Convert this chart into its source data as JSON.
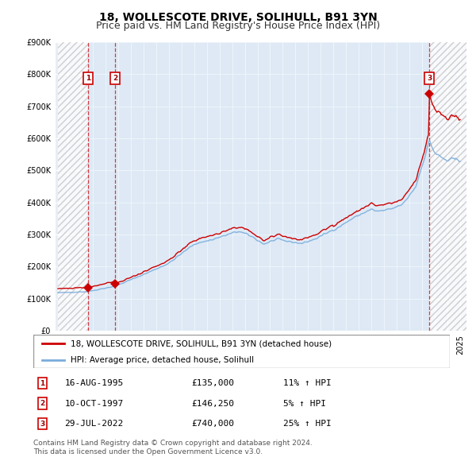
{
  "title": "18, WOLLESCOTE DRIVE, SOLIHULL, B91 3YN",
  "subtitle": "Price paid vs. HM Land Registry's House Price Index (HPI)",
  "ylim": [
    0,
    900000
  ],
  "yticks": [
    0,
    100000,
    200000,
    300000,
    400000,
    500000,
    600000,
    700000,
    800000,
    900000
  ],
  "ytick_labels": [
    "£0",
    "£100K",
    "£200K",
    "£300K",
    "£400K",
    "£500K",
    "£600K",
    "£700K",
    "£800K",
    "£900K"
  ],
  "xlim_min": 1993.25,
  "xlim_max": 2025.5,
  "background_color": "#ffffff",
  "plot_bg_color": "#e8eef5",
  "grid_color": "#ffffff",
  "hatch_region_left_end": 1995.62,
  "hatch_region_right_start": 2022.57,
  "sale_line_color": "#cc0000",
  "hpi_line_color": "#7aaddc",
  "transactions": [
    {
      "num": 1,
      "year": 1995.62,
      "price": 135000,
      "label": "16-AUG-1995",
      "price_label": "£135,000",
      "hpi_pct": "11% ↑ HPI"
    },
    {
      "num": 2,
      "year": 1997.78,
      "price": 146250,
      "label": "10-OCT-1997",
      "price_label": "£146,250",
      "hpi_pct": "5% ↑ HPI"
    },
    {
      "num": 3,
      "year": 2022.57,
      "price": 740000,
      "label": "29-JUL-2022",
      "price_label": "£740,000",
      "hpi_pct": "25% ↑ HPI"
    }
  ],
  "legend_sale_label": "18, WOLLESCOTE DRIVE, SOLIHULL, B91 3YN (detached house)",
  "legend_hpi_label": "HPI: Average price, detached house, Solihull",
  "footer_text": "Contains HM Land Registry data © Crown copyright and database right 2024.\nThis data is licensed under the Open Government Licence v3.0.",
  "title_fontsize": 10,
  "subtitle_fontsize": 9,
  "tick_fontsize": 7,
  "legend_fontsize": 7.5,
  "footer_fontsize": 6.5
}
